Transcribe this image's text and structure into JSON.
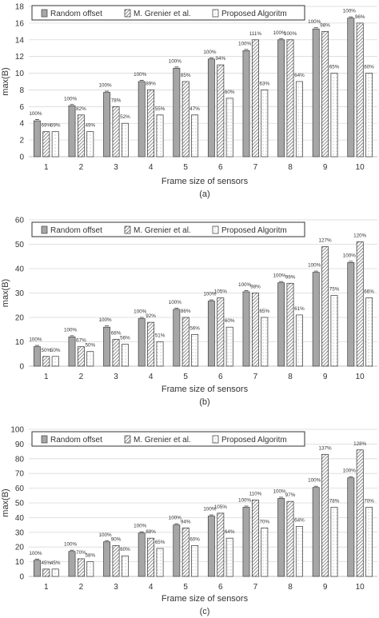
{
  "legend": {
    "random": "Random offset",
    "grenier": "M. Grenier et al.",
    "proposed": "Proposed Algoritm"
  },
  "colors": {
    "random": "#a6a6a6",
    "random_edge": "#3f3f3f",
    "hatch": "#555555",
    "dots": "#777777",
    "axis": "#bfbfbf",
    "grid": "#d9d9d9"
  },
  "chart_data": [
    {
      "type": "bar",
      "caption": "(a)",
      "xlabel": "Frame size of sensors",
      "ylabel": "max(B)",
      "ylim": [
        0,
        18
      ],
      "ytick_step": 2,
      "grid": true,
      "legend_position": "top",
      "categories": [
        "1",
        "2",
        "3",
        "4",
        "5",
        "6",
        "7",
        "8",
        "9",
        "10"
      ],
      "series": [
        {
          "name": "Random offset",
          "values": [
            4.3,
            6.1,
            7.7,
            9.0,
            10.6,
            11.7,
            12.7,
            14.0,
            15.3,
            16.6
          ],
          "labels": [
            "100%",
            "100%",
            "100%",
            "100%",
            "100%",
            "100%",
            "100%",
            "100%",
            "100%",
            "100%"
          ]
        },
        {
          "name": "M. Grenier et al.",
          "values": [
            3,
            5,
            6,
            8,
            9,
            11,
            14,
            14,
            15,
            16
          ],
          "labels": [
            "69%",
            "82%",
            "78%",
            "89%",
            "85%",
            "94%",
            "111%",
            "100%",
            "98%",
            "96%"
          ]
        },
        {
          "name": "Proposed Algoritm",
          "values": [
            3,
            3,
            4,
            5,
            5,
            7,
            8,
            9,
            10,
            10
          ],
          "labels": [
            "69%",
            "49%",
            "52%",
            "55%",
            "47%",
            "60%",
            "63%",
            "64%",
            "65%",
            "60%"
          ]
        }
      ]
    },
    {
      "type": "bar",
      "caption": "(b)",
      "xlabel": "Frame size of sensors",
      "ylabel": "max(B)",
      "ylim": [
        0,
        60
      ],
      "ytick_step": 10,
      "grid": true,
      "legend_position": "top",
      "categories": [
        "1",
        "2",
        "3",
        "4",
        "5",
        "6",
        "7",
        "8",
        "9",
        "10"
      ],
      "series": [
        {
          "name": "Random offset",
          "values": [
            8,
            12,
            16,
            19.5,
            23.3,
            26.7,
            30.5,
            34.2,
            38.5,
            42.5
          ],
          "labels": [
            "100%",
            "100%",
            "100%",
            "100%",
            "100%",
            "100%",
            "100%",
            "100%",
            "100%",
            "100%"
          ]
        },
        {
          "name": "M. Grenier et al.",
          "values": [
            4,
            8,
            11,
            18,
            20,
            28,
            30,
            34,
            49,
            51
          ],
          "labels": [
            "50%",
            "67%",
            "68%",
            "92%",
            "86%",
            "105%",
            "98%",
            "99%",
            "127%",
            "120%"
          ]
        },
        {
          "name": "Proposed Algoritm",
          "values": [
            4,
            6,
            9,
            10,
            13,
            16,
            20,
            21,
            29,
            28
          ],
          "labels": [
            "50%",
            "50%",
            "56%",
            "51%",
            "56%",
            "60%",
            "65%",
            "61%",
            "75%",
            "66%"
          ]
        }
      ]
    },
    {
      "type": "bar",
      "caption": "(c)",
      "xlabel": "Frame size of sensors",
      "ylabel": "max(B)",
      "ylim": [
        0,
        100
      ],
      "ytick_step": 10,
      "grid": true,
      "legend_position": "top",
      "categories": [
        "1",
        "2",
        "3",
        "4",
        "5",
        "6",
        "7",
        "8",
        "9",
        "10"
      ],
      "series": [
        {
          "name": "Random offset",
          "values": [
            11,
            17,
            23.5,
            29.5,
            35,
            41,
            47,
            53,
            60.5,
            67
          ],
          "labels": [
            "100%",
            "100%",
            "100%",
            "100%",
            "100%",
            "100%",
            "100%",
            "100%",
            "100%",
            "100%"
          ]
        },
        {
          "name": "M. Grenier et al.",
          "values": [
            5,
            12,
            21,
            26,
            33,
            43,
            52,
            51,
            83,
            86
          ],
          "labels": [
            "45%",
            "70%",
            "90%",
            "88%",
            "94%",
            "105%",
            "110%",
            "97%",
            "137%",
            "128%"
          ]
        },
        {
          "name": "Proposed Algoritm",
          "values": [
            5,
            10,
            14,
            19,
            21,
            26,
            33,
            34,
            47,
            47
          ],
          "labels": [
            "45%",
            "58%",
            "60%",
            "65%",
            "60%",
            "64%",
            "70%",
            "64%",
            "78%",
            "70%"
          ]
        }
      ]
    }
  ]
}
